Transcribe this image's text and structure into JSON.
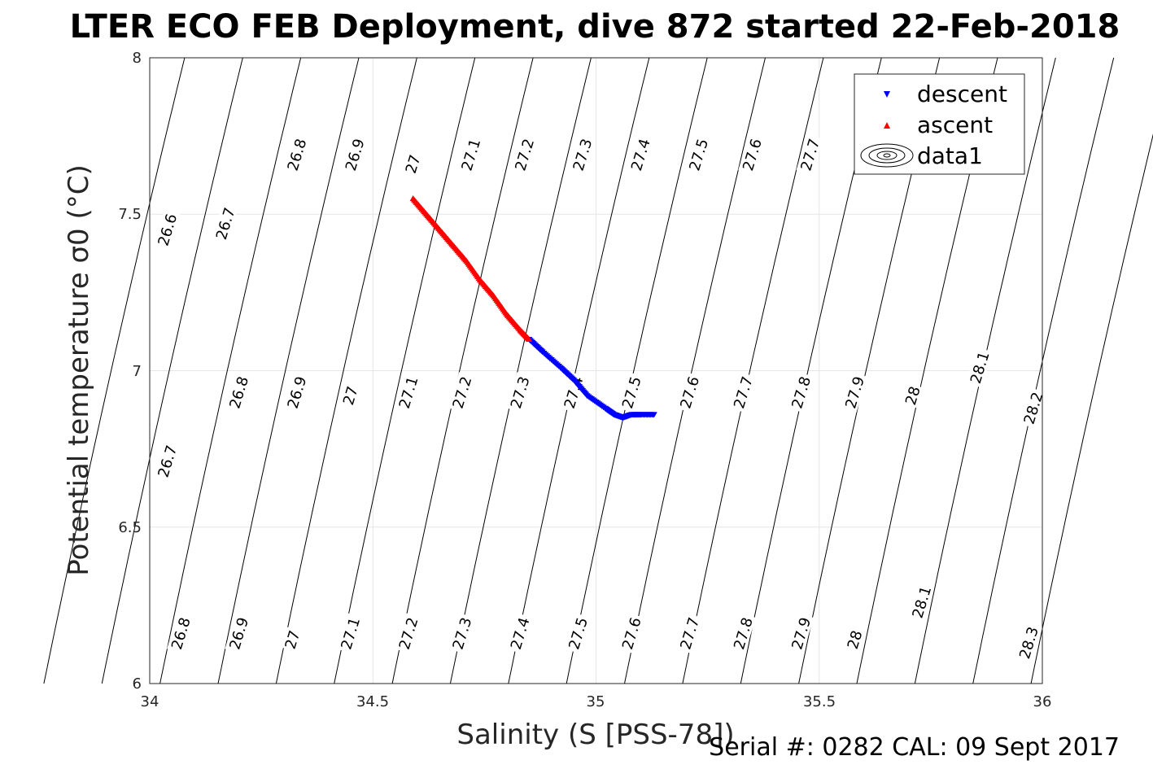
{
  "chart_data": {
    "type": "scatter",
    "title": "LTER ECO FEB Deployment, dive 872 started 22-Feb-2018",
    "xlabel": "Salinity (S [PSS-78])",
    "ylabel": "Potential temperature σ0 (°C)",
    "xlim": [
      34,
      36
    ],
    "ylim": [
      6,
      8
    ],
    "xticks": [
      "34",
      "34.5",
      "35",
      "35.5",
      "36"
    ],
    "yticks": [
      "6",
      "6.5",
      "7",
      "7.5",
      "8"
    ],
    "grid": true,
    "legend_position": "top-right",
    "legend": [
      "descent",
      "ascent",
      "data1"
    ],
    "contour_levels": [
      26.6,
      26.7,
      26.8,
      26.9,
      27.0,
      27.1,
      27.2,
      27.3,
      27.4,
      27.5,
      27.6,
      27.7,
      27.8,
      27.9,
      28.0,
      28.1,
      28.2,
      28.3
    ],
    "contour_labels": [
      {
        "text": "26.6",
        "x": 34.04,
        "y": 7.45
      },
      {
        "text": "26.7",
        "x": 34.17,
        "y": 7.47
      },
      {
        "text": "26.8",
        "x": 34.33,
        "y": 7.69
      },
      {
        "text": "26.9",
        "x": 34.46,
        "y": 7.69
      },
      {
        "text": "27",
        "x": 34.59,
        "y": 7.66
      },
      {
        "text": "27.1",
        "x": 34.72,
        "y": 7.69
      },
      {
        "text": "27.2",
        "x": 34.84,
        "y": 7.69
      },
      {
        "text": "27.3",
        "x": 34.97,
        "y": 7.69
      },
      {
        "text": "27.4",
        "x": 35.1,
        "y": 7.69
      },
      {
        "text": "27.5",
        "x": 35.23,
        "y": 7.69
      },
      {
        "text": "27.6",
        "x": 35.35,
        "y": 7.69
      },
      {
        "text": "27.7",
        "x": 35.48,
        "y": 7.69
      },
      {
        "text": "26.7",
        "x": 34.04,
        "y": 6.71
      },
      {
        "text": "26.8",
        "x": 34.2,
        "y": 6.93
      },
      {
        "text": "26.9",
        "x": 34.33,
        "y": 6.93
      },
      {
        "text": "27",
        "x": 34.45,
        "y": 6.92
      },
      {
        "text": "27.1",
        "x": 34.58,
        "y": 6.93
      },
      {
        "text": "27.2",
        "x": 34.7,
        "y": 6.93
      },
      {
        "text": "27.3",
        "x": 34.83,
        "y": 6.93
      },
      {
        "text": "27.4",
        "x": 34.95,
        "y": 6.93
      },
      {
        "text": "27.5",
        "x": 35.08,
        "y": 6.93
      },
      {
        "text": "27.6",
        "x": 35.21,
        "y": 6.93
      },
      {
        "text": "27.7",
        "x": 35.33,
        "y": 6.93
      },
      {
        "text": "27.8",
        "x": 35.46,
        "y": 6.93
      },
      {
        "text": "27.9",
        "x": 35.58,
        "y": 6.93
      },
      {
        "text": "28",
        "x": 35.71,
        "y": 6.92
      },
      {
        "text": "28.1",
        "x": 35.86,
        "y": 7.01
      },
      {
        "text": "28.2",
        "x": 35.98,
        "y": 6.88
      },
      {
        "text": "26.8",
        "x": 34.07,
        "y": 6.16
      },
      {
        "text": "26.9",
        "x": 34.2,
        "y": 6.16
      },
      {
        "text": "27",
        "x": 34.32,
        "y": 6.14
      },
      {
        "text": "27.1",
        "x": 34.45,
        "y": 6.16
      },
      {
        "text": "27.2",
        "x": 34.58,
        "y": 6.16
      },
      {
        "text": "27.3",
        "x": 34.7,
        "y": 6.16
      },
      {
        "text": "27.4",
        "x": 34.83,
        "y": 6.16
      },
      {
        "text": "27.5",
        "x": 34.96,
        "y": 6.16
      },
      {
        "text": "27.6",
        "x": 35.08,
        "y": 6.16
      },
      {
        "text": "27.7",
        "x": 35.21,
        "y": 6.16
      },
      {
        "text": "27.8",
        "x": 35.33,
        "y": 6.16
      },
      {
        "text": "27.9",
        "x": 35.46,
        "y": 6.16
      },
      {
        "text": "28",
        "x": 35.58,
        "y": 6.14
      },
      {
        "text": "28.1",
        "x": 35.73,
        "y": 6.26
      },
      {
        "text": "28.3",
        "x": 35.97,
        "y": 6.13
      }
    ],
    "series": [
      {
        "name": "descent",
        "marker": "triangle-down",
        "color": "#0000ff",
        "points": [
          [
            34.85,
            7.1
          ],
          [
            34.88,
            7.06
          ],
          [
            34.92,
            7.01
          ],
          [
            34.95,
            6.97
          ],
          [
            34.98,
            6.92
          ],
          [
            35.02,
            6.88
          ],
          [
            35.04,
            6.86
          ],
          [
            35.06,
            6.85
          ],
          [
            35.08,
            6.86
          ],
          [
            35.1,
            6.86
          ],
          [
            35.13,
            6.86
          ]
        ]
      },
      {
        "name": "ascent",
        "marker": "triangle-up",
        "color": "#ff0000",
        "points": [
          [
            34.59,
            7.55
          ],
          [
            34.62,
            7.5
          ],
          [
            34.65,
            7.45
          ],
          [
            34.68,
            7.4
          ],
          [
            34.71,
            7.35
          ],
          [
            34.74,
            7.29
          ],
          [
            34.77,
            7.24
          ],
          [
            34.8,
            7.18
          ],
          [
            34.83,
            7.13
          ],
          [
            34.85,
            7.1
          ]
        ]
      }
    ]
  },
  "footer": {
    "serial": "Serial #: 0282  CAL: 09 Sept 2017"
  }
}
